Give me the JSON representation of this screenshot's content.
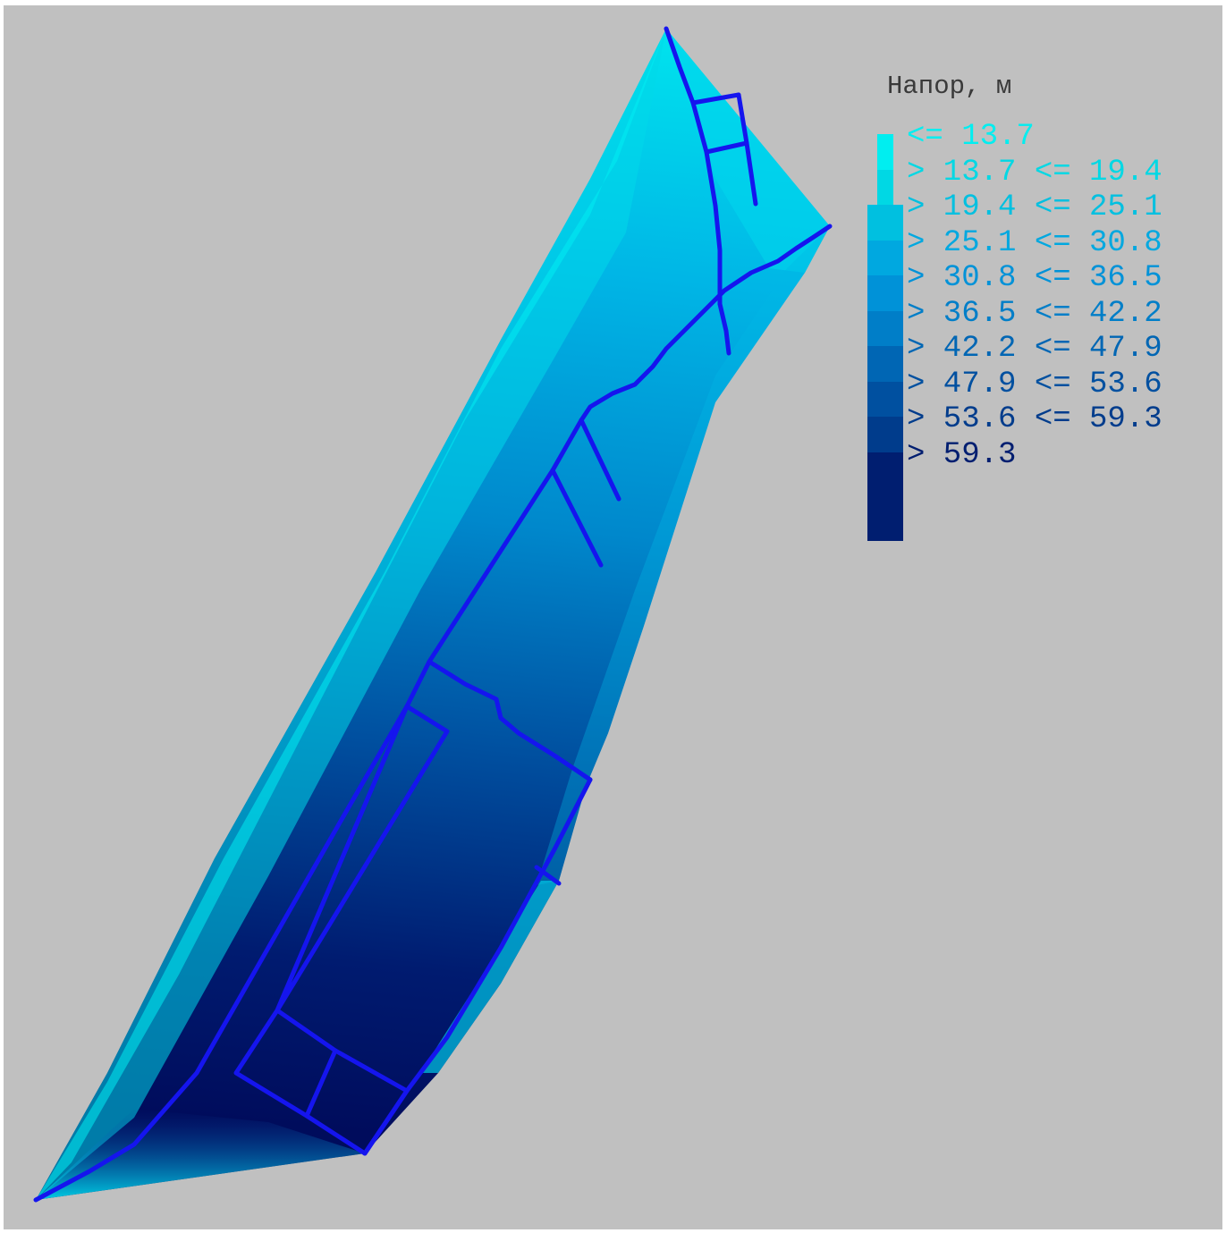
{
  "legend": {
    "title": "Напор, м",
    "items": [
      {
        "label": "<= 13.7",
        "color": "#00eef0"
      },
      {
        "label": "> 13.7 <= 19.4",
        "color": "#00d8e4"
      },
      {
        "label": "> 19.4 <= 25.1",
        "color": "#00c0e0"
      },
      {
        "label": "> 25.1 <= 30.8",
        "color": "#00a8e0"
      },
      {
        "label": "> 30.8 <= 36.5",
        "color": "#0092d8"
      },
      {
        "label": "> 36.5 <= 42.2",
        "color": "#007ec8"
      },
      {
        "label": "> 42.2 <= 47.9",
        "color": "#0066b4"
      },
      {
        "label": "> 47.9 <= 53.6",
        "color": "#0050a0"
      },
      {
        "label": "> 53.6 <= 59.3",
        "color": "#003c8c"
      },
      {
        "label": "> 59.3",
        "color": "#001e70"
      }
    ]
  },
  "colors": {
    "background": "#c0c0c0",
    "pipe": "#1515ee",
    "low": "#00e8f0",
    "high": "#000a5a"
  }
}
